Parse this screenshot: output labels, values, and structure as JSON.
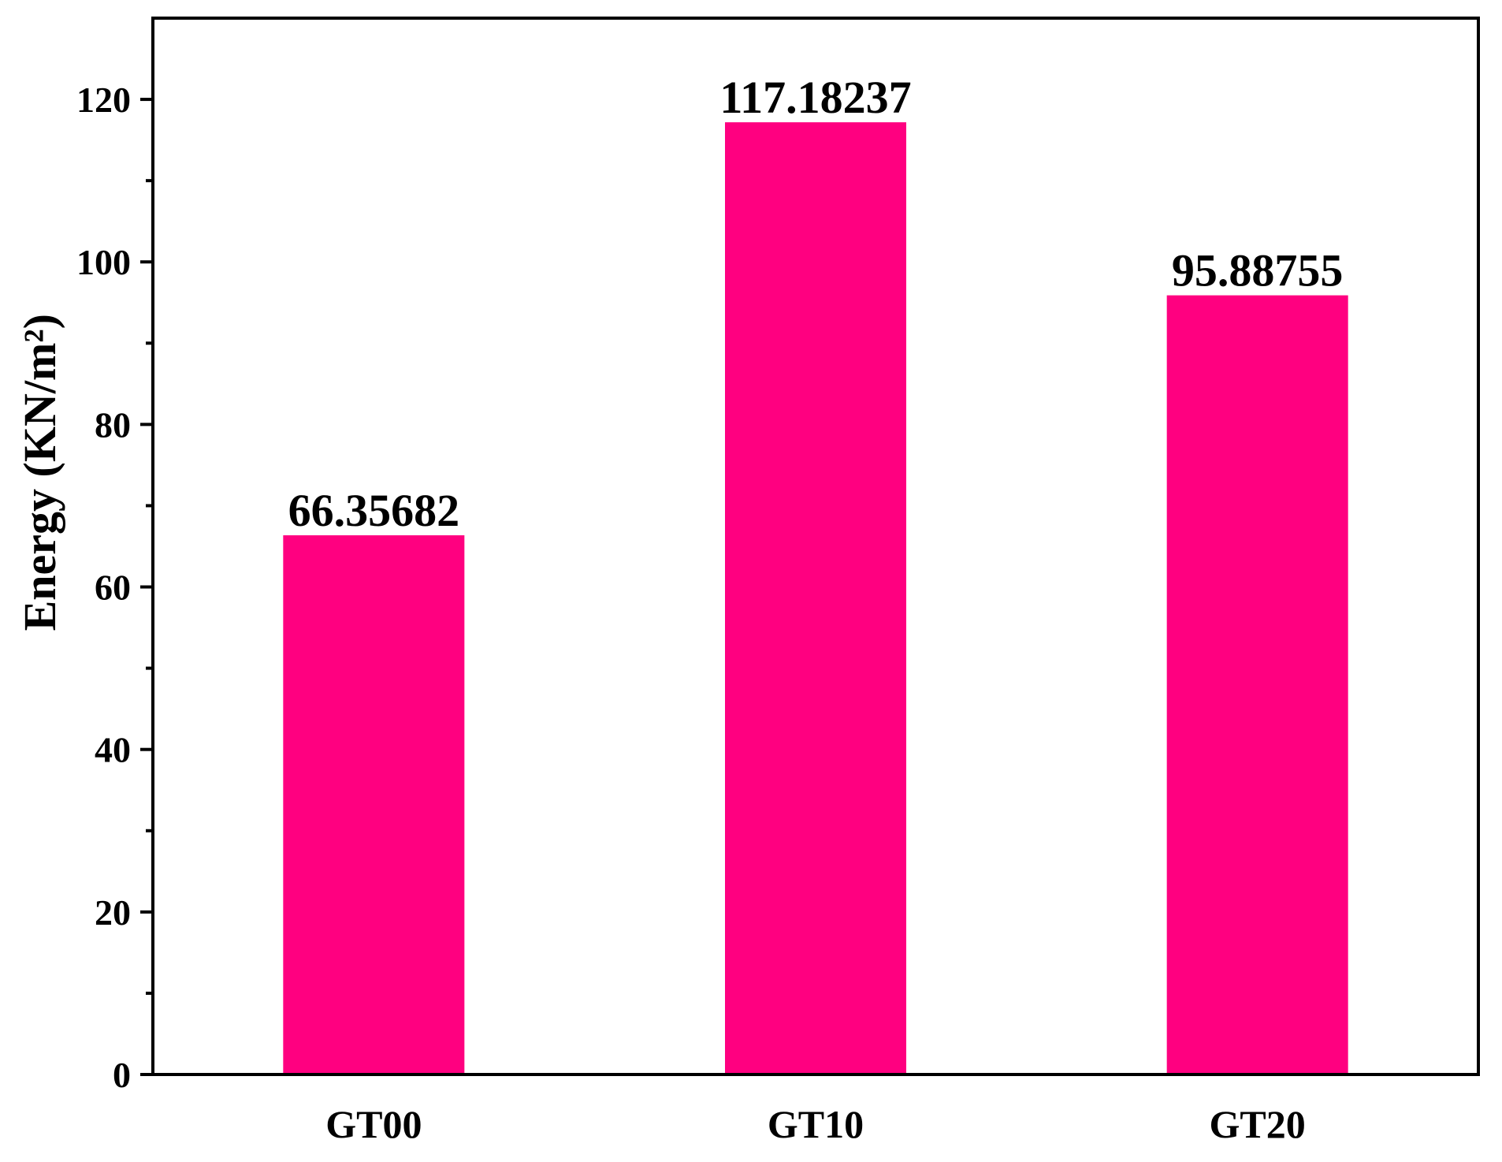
{
  "chart_data": {
    "type": "bar",
    "title": "",
    "xlabel": "",
    "ylabel": "Energy (KN/m²)",
    "categories": [
      "GT00",
      "GT10",
      "GT20"
    ],
    "values": [
      66.35682,
      117.18237,
      95.88755
    ],
    "data_labels": [
      "66.35682",
      "117.18237",
      "95.88755"
    ],
    "ylim": [
      0,
      130
    ],
    "y_major_ticks": [
      0,
      20,
      40,
      60,
      80,
      100,
      120
    ],
    "y_minor_ticks": [
      10,
      30,
      50,
      70,
      90,
      110
    ],
    "grid": false,
    "legend": "none",
    "bar_color": "#FF0080",
    "axis_color": "#000000"
  }
}
